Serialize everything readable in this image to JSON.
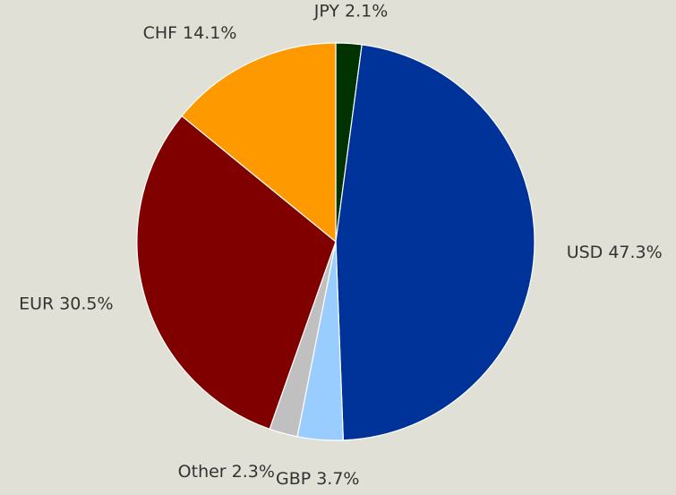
{
  "chart_data": {
    "type": "pie",
    "categories": [
      "JPY",
      "USD",
      "GBP",
      "Other",
      "EUR",
      "CHF"
    ],
    "values": [
      2.1,
      47.3,
      3.7,
      2.3,
      30.5,
      14.1
    ],
    "value_labels": [
      "2.1%",
      "47.3%",
      "3.7%",
      "2.3%",
      "30.5%",
      "14.1%"
    ],
    "colors": [
      "#003300",
      "#003399",
      "#99ccff",
      "#c0c0c0",
      "#800000",
      "#ff9900"
    ]
  }
}
